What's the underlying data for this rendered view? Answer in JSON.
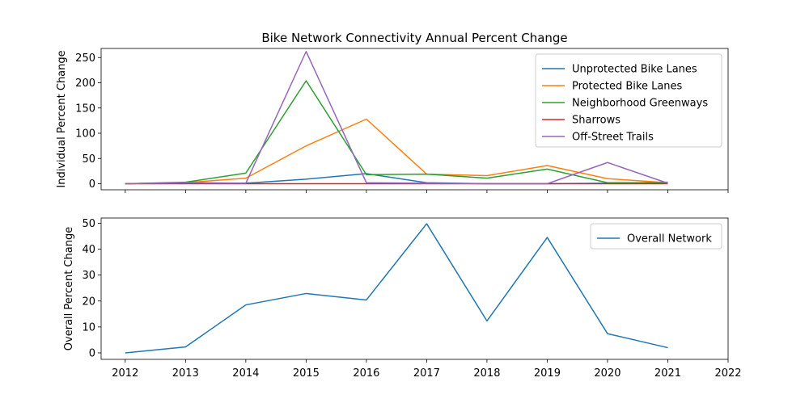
{
  "chart_data": [
    {
      "type": "line",
      "title": "Bike Network Connectivity Annual Percent Change",
      "xlabel": "",
      "ylabel": "Individual Percent Change",
      "x": [
        2012,
        2013,
        2014,
        2015,
        2016,
        2017,
        2018,
        2019,
        2020,
        2021
      ],
      "xlim": [
        2011.6,
        2022
      ],
      "xticks": [
        2012,
        2013,
        2014,
        2015,
        2016,
        2017,
        2018,
        2019,
        2020,
        2021,
        2022
      ],
      "xtick_labels_visible": false,
      "ylim": [
        -12,
        268
      ],
      "yticks": [
        0,
        50,
        100,
        150,
        200,
        250
      ],
      "legend": "top-right",
      "grid": false,
      "series": [
        {
          "name": "Unprotected Bike Lanes",
          "color": "#1f77b4",
          "values": [
            0,
            2,
            1,
            9,
            20,
            2,
            0,
            0,
            1,
            3
          ]
        },
        {
          "name": "Protected Bike Lanes",
          "color": "#ff7f0e",
          "values": [
            0,
            2,
            11,
            75,
            128,
            19,
            16,
            36,
            10,
            2
          ]
        },
        {
          "name": "Neighborhood Greenways",
          "color": "#2ca02c",
          "values": [
            0,
            3,
            21,
            204,
            18,
            19,
            11,
            29,
            2,
            2
          ]
        },
        {
          "name": "Sharrows",
          "color": "#d62728",
          "values": [
            0,
            0,
            0,
            0,
            0,
            0,
            0,
            0,
            0,
            0
          ]
        },
        {
          "name": "Off-Street Trails",
          "color": "#9467bd",
          "values": [
            0,
            2,
            1,
            262,
            2,
            1,
            0,
            0,
            42,
            1
          ]
        }
      ]
    },
    {
      "type": "line",
      "title": "",
      "xlabel": "",
      "ylabel": "Overall Percent Change",
      "x": [
        2012,
        2013,
        2014,
        2015,
        2016,
        2017,
        2018,
        2019,
        2020,
        2021
      ],
      "xlim": [
        2011.6,
        2022
      ],
      "xticks": [
        2012,
        2013,
        2014,
        2015,
        2016,
        2017,
        2018,
        2019,
        2020,
        2021,
        2022
      ],
      "xtick_labels_visible": true,
      "ylim": [
        -2.5,
        52
      ],
      "yticks": [
        0,
        10,
        20,
        30,
        40,
        50
      ],
      "legend": "top-right",
      "grid": false,
      "series": [
        {
          "name": "Overall Network",
          "color": "#1f77b4",
          "values": [
            0,
            2.3,
            18.5,
            22.9,
            20.4,
            49.8,
            12.3,
            44.5,
            7.4,
            2.0
          ]
        }
      ]
    }
  ]
}
